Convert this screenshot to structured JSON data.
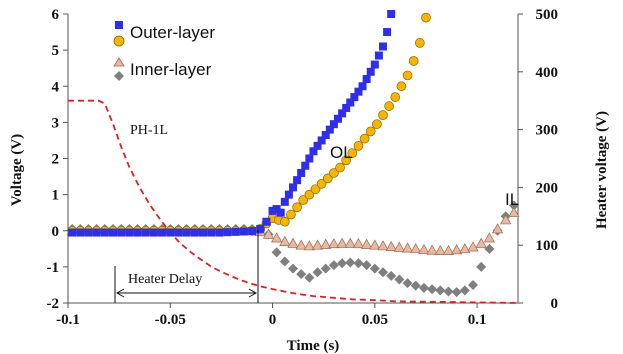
{
  "chart_data": {
    "type": "scatter",
    "xlabel": "Time (s)",
    "ylabel": "Voltage (V)",
    "y2label": "Heater  voltage (V)",
    "xlim": [
      -0.1,
      0.12
    ],
    "ylim": [
      -2,
      6
    ],
    "y2lim": [
      0,
      500
    ],
    "xticks": [
      -0.1,
      -0.05,
      0,
      0.05,
      0.1
    ],
    "xtick_labels": [
      "-0.1",
      "-0.05",
      "0",
      "0.05",
      "0.1"
    ],
    "yticks": [
      -2,
      -1,
      0,
      1,
      2,
      3,
      4,
      5,
      6
    ],
    "ytick_labels": [
      "-2",
      "-1",
      "0",
      "1",
      "2",
      "3",
      "4",
      "5",
      "6"
    ],
    "y2ticks": [
      0,
      100,
      200,
      300,
      400,
      500
    ],
    "y2tick_labels": [
      "0",
      "100",
      "200",
      "300",
      "400",
      "500"
    ],
    "grid": false,
    "legend_position": "top-left",
    "series": [
      {
        "name": "Outer-layer",
        "axis": "left",
        "marker": "square",
        "color": "#2f2fe8",
        "x": [
          -0.098,
          -0.094,
          -0.09,
          -0.086,
          -0.082,
          -0.078,
          -0.074,
          -0.07,
          -0.066,
          -0.062,
          -0.058,
          -0.054,
          -0.05,
          -0.046,
          -0.042,
          -0.038,
          -0.034,
          -0.03,
          -0.026,
          -0.022,
          -0.018,
          -0.014,
          -0.01,
          -0.006,
          -0.003,
          0,
          0.002,
          0.004,
          0.006,
          0.008,
          0.01,
          0.012,
          0.014,
          0.016,
          0.018,
          0.02,
          0.022,
          0.024,
          0.026,
          0.028,
          0.03,
          0.032,
          0.034,
          0.036,
          0.038,
          0.04,
          0.042,
          0.044,
          0.046,
          0.048,
          0.05,
          0.052,
          0.054,
          0.056,
          0.058
        ],
        "y": [
          -0.05,
          -0.05,
          -0.05,
          -0.05,
          -0.05,
          -0.05,
          -0.05,
          -0.05,
          -0.05,
          -0.05,
          -0.05,
          -0.05,
          -0.05,
          -0.05,
          -0.05,
          -0.05,
          -0.05,
          -0.05,
          -0.05,
          -0.04,
          -0.03,
          -0.02,
          -0.01,
          0.05,
          0.25,
          0.55,
          0.6,
          0.5,
          0.8,
          1.0,
          1.2,
          1.4,
          1.6,
          1.8,
          2.0,
          2.2,
          2.35,
          2.5,
          2.65,
          2.8,
          2.95,
          3.1,
          3.25,
          3.4,
          3.55,
          3.7,
          3.85,
          4.0,
          4.2,
          4.4,
          4.6,
          4.85,
          5.1,
          5.5,
          6.0
        ]
      },
      {
        "name": "",
        "axis": "left",
        "marker": "circle",
        "color": "#f5b400",
        "x": [
          -0.098,
          -0.094,
          -0.09,
          -0.086,
          -0.082,
          -0.078,
          -0.074,
          -0.07,
          -0.066,
          -0.062,
          -0.058,
          -0.054,
          -0.05,
          -0.046,
          -0.042,
          -0.038,
          -0.034,
          -0.03,
          -0.026,
          -0.022,
          -0.018,
          -0.014,
          -0.01,
          -0.006,
          -0.003,
          0,
          0.003,
          0.006,
          0.009,
          0.012,
          0.015,
          0.018,
          0.021,
          0.024,
          0.027,
          0.03,
          0.033,
          0.036,
          0.039,
          0.042,
          0.045,
          0.048,
          0.051,
          0.054,
          0.057,
          0.06,
          0.063,
          0.066,
          0.069,
          0.072,
          0.075
        ],
        "y": [
          0,
          0,
          0,
          0,
          0,
          0,
          0,
          0,
          0,
          0,
          0,
          0,
          0,
          0,
          0,
          0,
          0,
          0,
          0,
          0,
          0,
          0,
          0,
          0.05,
          0.2,
          0.35,
          0.3,
          0.25,
          0.45,
          0.65,
          0.85,
          1.0,
          1.15,
          1.3,
          1.45,
          1.6,
          1.75,
          1.95,
          2.15,
          2.35,
          2.55,
          2.75,
          2.95,
          3.2,
          3.45,
          3.7,
          4.0,
          4.3,
          4.7,
          5.2,
          5.9
        ]
      },
      {
        "name": "Inner-layer",
        "axis": "left",
        "marker": "triangle",
        "color": "#e8b8a0",
        "x": [
          -0.098,
          -0.094,
          -0.09,
          -0.086,
          -0.082,
          -0.078,
          -0.074,
          -0.07,
          -0.066,
          -0.062,
          -0.058,
          -0.054,
          -0.05,
          -0.046,
          -0.042,
          -0.038,
          -0.034,
          -0.03,
          -0.026,
          -0.022,
          -0.018,
          -0.014,
          -0.01,
          -0.006,
          -0.002,
          0.002,
          0.006,
          0.01,
          0.014,
          0.018,
          0.022,
          0.026,
          0.03,
          0.034,
          0.038,
          0.042,
          0.046,
          0.05,
          0.054,
          0.058,
          0.062,
          0.066,
          0.07,
          0.074,
          0.078,
          0.082,
          0.086,
          0.09,
          0.094,
          0.098,
          0.102,
          0.106,
          0.11,
          0.114,
          0.118
        ],
        "y": [
          0,
          0,
          0,
          0,
          0,
          0,
          0,
          0,
          0,
          0,
          0,
          0,
          0,
          0,
          0,
          0,
          0,
          0,
          0,
          0,
          0,
          0,
          0,
          -0.02,
          -0.1,
          -0.2,
          -0.3,
          -0.35,
          -0.4,
          -0.42,
          -0.4,
          -0.38,
          -0.36,
          -0.35,
          -0.35,
          -0.36,
          -0.38,
          -0.4,
          -0.42,
          -0.44,
          -0.46,
          -0.48,
          -0.5,
          -0.52,
          -0.54,
          -0.55,
          -0.55,
          -0.53,
          -0.5,
          -0.45,
          -0.35,
          -0.2,
          0.05,
          0.3,
          0.5
        ]
      },
      {
        "name": "",
        "axis": "left",
        "marker": "diamond",
        "color": "#7f7f7f",
        "x": [
          -0.098,
          -0.094,
          -0.09,
          -0.086,
          -0.082,
          -0.078,
          -0.074,
          -0.07,
          -0.066,
          -0.062,
          -0.058,
          -0.054,
          -0.05,
          -0.046,
          -0.042,
          -0.038,
          -0.034,
          -0.03,
          -0.026,
          -0.022,
          -0.018,
          -0.014,
          -0.01,
          -0.006,
          -0.002,
          0.002,
          0.006,
          0.01,
          0.014,
          0.018,
          0.022,
          0.026,
          0.03,
          0.034,
          0.038,
          0.042,
          0.046,
          0.05,
          0.054,
          0.058,
          0.062,
          0.066,
          0.07,
          0.074,
          0.078,
          0.082,
          0.086,
          0.09,
          0.094,
          0.098,
          0.102,
          0.106,
          0.11,
          0.114,
          0.118
        ],
        "y": [
          0.05,
          0.05,
          0.05,
          0.05,
          0.05,
          0.05,
          0.05,
          0.05,
          0.05,
          0.05,
          0.05,
          0.05,
          0.05,
          0.05,
          0.05,
          0.05,
          0.05,
          0.05,
          0.05,
          0.05,
          0.05,
          0.05,
          0.05,
          0.02,
          -0.1,
          -0.6,
          -0.85,
          -1.05,
          -1.2,
          -1.3,
          -1.15,
          -1.05,
          -0.95,
          -0.9,
          -0.88,
          -0.9,
          -0.95,
          -1.05,
          -1.15,
          -1.25,
          -1.35,
          -1.45,
          -1.52,
          -1.58,
          -1.62,
          -1.65,
          -1.68,
          -1.7,
          -1.65,
          -1.5,
          -1.0,
          -0.5,
          0.0,
          0.4,
          0.7
        ]
      },
      {
        "name": "",
        "axis": "right",
        "style": "dashed-line",
        "color": "#e02020",
        "x": [
          -0.1,
          -0.095,
          -0.09,
          -0.085,
          -0.082,
          -0.078,
          -0.074,
          -0.07,
          -0.065,
          -0.06,
          -0.055,
          -0.05,
          -0.045,
          -0.04,
          -0.035,
          -0.03,
          -0.025,
          -0.02,
          -0.015,
          -0.01,
          -0.005,
          0,
          0.01,
          0.02,
          0.03,
          0.04,
          0.05,
          0.06,
          0.08,
          0.1,
          0.12
        ],
        "y": [
          350,
          350,
          350,
          350,
          345,
          310,
          270,
          235,
          200,
          170,
          145,
          122,
          103,
          88,
          75,
          63,
          54,
          46,
          39,
          33,
          28,
          24,
          17,
          12,
          9,
          6,
          5,
          3,
          2,
          1,
          0
        ]
      }
    ],
    "annotations": [
      {
        "text": "OL",
        "x": 0.025,
        "y": 2.5
      },
      {
        "text": "IL",
        "x": 0.1,
        "y": 1.0
      },
      {
        "text": "PH-1L",
        "x": -0.08,
        "y": 3.0
      },
      {
        "text": "Heater Delay",
        "x_start": -0.082,
        "x_end": -0.015,
        "y": -1.6
      }
    ]
  }
}
